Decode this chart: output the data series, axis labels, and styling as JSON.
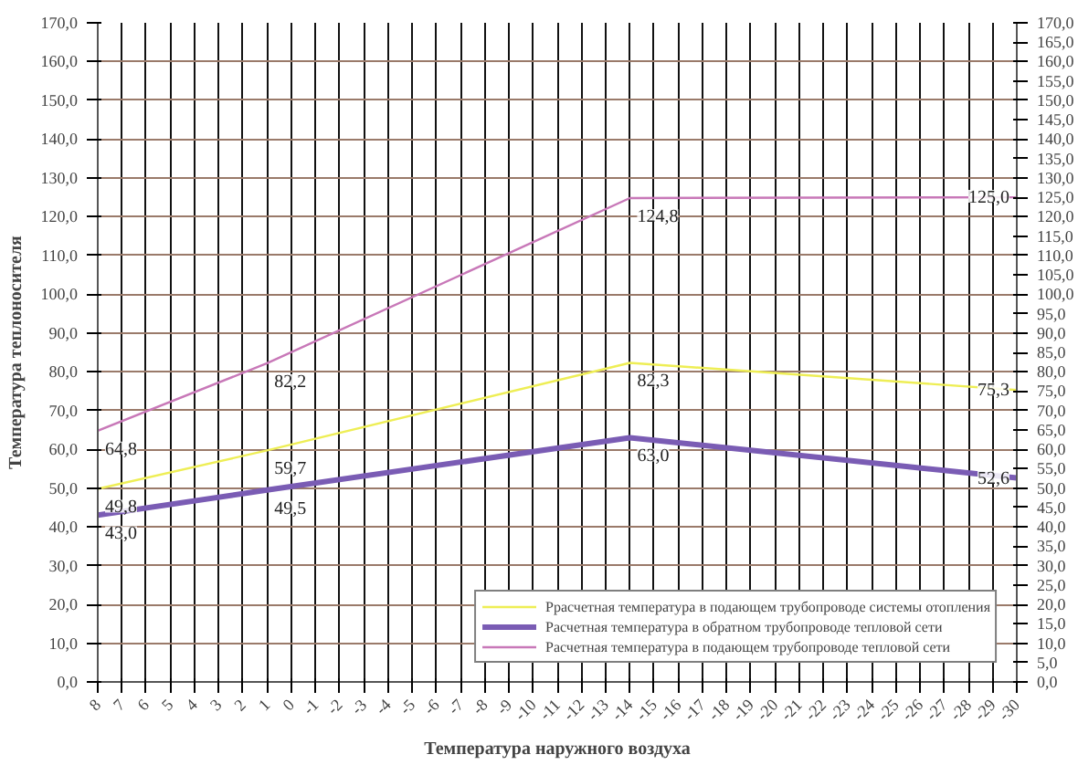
{
  "chart_data": {
    "type": "line",
    "xlabel": "Температура наружного воздуха",
    "ylabel": "Температура теплоносителя",
    "categories": [
      "8",
      "7",
      "6",
      "5",
      "4",
      "3",
      "2",
      "1",
      "0",
      "-1",
      "-2",
      "-3",
      "-4",
      "-5",
      "-6",
      "-7",
      "-8",
      "-9",
      "-10",
      "-11",
      "-12",
      "-13",
      "-14",
      "-15",
      "-16",
      "-17",
      "-18",
      "-19",
      "-20",
      "-21",
      "-22",
      "-23",
      "-24",
      "-25",
      "-26",
      "-27",
      "-28",
      "-29",
      "-30"
    ],
    "series": [
      {
        "name": "Ррасчетная температура в подающем трубопроводе системы отопления",
        "color": "#eeee55",
        "x": [
          "8",
          "1",
          "-14",
          "-30"
        ],
        "values": [
          49.8,
          59.7,
          82.3,
          75.3
        ],
        "value_labels": [
          "49,8",
          "59,7",
          "82,3",
          "75,3"
        ]
      },
      {
        "name": "Расчетная температура в обратном трубопроводе тепловой сети",
        "color": "#7a5cb4",
        "x": [
          "8",
          "1",
          "-14",
          "-30"
        ],
        "values": [
          43.0,
          49.5,
          63.0,
          52.6
        ],
        "value_labels": [
          "43,0",
          "49,5",
          "63,0",
          "52,6"
        ]
      },
      {
        "name": "Расчетная температура в подающем трубопроводе тепловой сети",
        "color": "#c878b8",
        "x": [
          "8",
          "1",
          "-14",
          "-30"
        ],
        "values": [
          64.8,
          82.2,
          124.8,
          125.0
        ],
        "value_labels": [
          "64,8",
          "82,2",
          "124,8",
          "125,0"
        ]
      }
    ],
    "ylim": [
      0,
      170
    ],
    "yticks": [
      {
        "value": 0,
        "label": "0,0"
      },
      {
        "value": 10,
        "label": "10,0"
      },
      {
        "value": 20,
        "label": "20,0"
      },
      {
        "value": 30,
        "label": "30,0"
      },
      {
        "value": 40,
        "label": "40,0"
      },
      {
        "value": 50,
        "label": "50,0"
      },
      {
        "value": 60,
        "label": "60,0"
      },
      {
        "value": 70,
        "label": "70,0"
      },
      {
        "value": 80,
        "label": "80,0"
      },
      {
        "value": 90,
        "label": "90,0"
      },
      {
        "value": 100,
        "label": "100,0"
      },
      {
        "value": 110,
        "label": "110,0"
      },
      {
        "value": 120,
        "label": "120,0"
      },
      {
        "value": 130,
        "label": "130,0"
      },
      {
        "value": 140,
        "label": "140,0"
      },
      {
        "value": 150,
        "label": "150,0"
      },
      {
        "value": 160,
        "label": "160,0"
      },
      {
        "value": 170,
        "label": "170,0"
      }
    ],
    "y2lim": [
      0,
      170
    ],
    "y2ticks": [
      {
        "value": 0,
        "label": "0,0"
      },
      {
        "value": 5,
        "label": "5,0"
      },
      {
        "value": 10,
        "label": "10,0"
      },
      {
        "value": 15,
        "label": "15,0"
      },
      {
        "value": 20,
        "label": "20,0"
      },
      {
        "value": 25,
        "label": "25,0"
      },
      {
        "value": 30,
        "label": "30,0"
      },
      {
        "value": 35,
        "label": "35,0"
      },
      {
        "value": 40,
        "label": "40,0"
      },
      {
        "value": 45,
        "label": "45,0"
      },
      {
        "value": 50,
        "label": "50,0"
      },
      {
        "value": 55,
        "label": "55,0"
      },
      {
        "value": 60,
        "label": "60,0"
      },
      {
        "value": 65,
        "label": "65,0"
      },
      {
        "value": 70,
        "label": "70,0"
      },
      {
        "value": 75,
        "label": "75,0"
      },
      {
        "value": 80,
        "label": "80,0"
      },
      {
        "value": 85,
        "label": "85,0"
      },
      {
        "value": 90,
        "label": "90,0"
      },
      {
        "value": 95,
        "label": "95,0"
      },
      {
        "value": 100,
        "label": "100,0"
      },
      {
        "value": 105,
        "label": "105,0"
      },
      {
        "value": 110,
        "label": "110,0"
      },
      {
        "value": 115,
        "label": "115,0"
      },
      {
        "value": 120,
        "label": "120,0"
      },
      {
        "value": 125,
        "label": "125,0"
      },
      {
        "value": 130,
        "label": "130,0"
      },
      {
        "value": 135,
        "label": "135,0"
      },
      {
        "value": 140,
        "label": "140,0"
      },
      {
        "value": 145,
        "label": "145,0"
      },
      {
        "value": 150,
        "label": "150,0"
      },
      {
        "value": 155,
        "label": "155,0"
      },
      {
        "value": 160,
        "label": "160,0"
      },
      {
        "value": 165,
        "label": "165,0"
      },
      {
        "value": 170,
        "label": "170,0"
      }
    ],
    "grid": true,
    "legend": "bottom right",
    "line_style": "solid",
    "marker": "none"
  }
}
